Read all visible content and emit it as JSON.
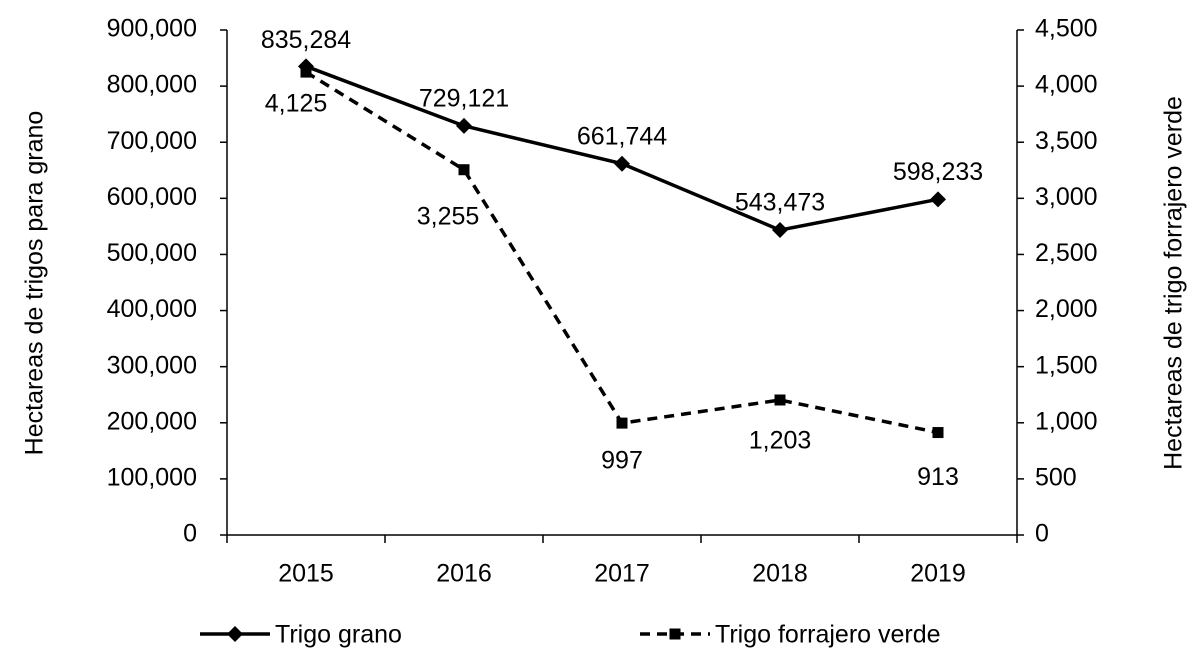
{
  "chart_data": {
    "type": "line",
    "categories": [
      "2015",
      "2016",
      "2017",
      "2018",
      "2019"
    ],
    "ylabel": "Hectareas de trigos para grano",
    "y2label": "Hectareas de trigo forrajero verde",
    "ylim": [
      0,
      900000
    ],
    "yticks": [
      0,
      {
        "value": 100000,
        "label": "100,000"
      },
      {
        "value": 200000,
        "label": "200,000"
      },
      {
        "value": 300000,
        "label": "300,000"
      },
      {
        "value": 400000,
        "label": "400,000"
      },
      {
        "value": 500000,
        "label": "500,000"
      },
      {
        "value": 600000,
        "label": "600,000"
      },
      {
        "value": 700000,
        "label": "700,000"
      },
      {
        "value": 800000,
        "label": "800,000"
      },
      {
        "value": 900000,
        "label": "900,000"
      }
    ],
    "y2lim": [
      0,
      4500
    ],
    "y2ticks": [
      0,
      500,
      {
        "value": 1000,
        "label": "1,000"
      },
      {
        "value": 1500,
        "label": "1,500"
      },
      {
        "value": 2000,
        "label": "2,000"
      },
      {
        "value": 2500,
        "label": "2,500"
      },
      {
        "value": 3000,
        "label": "3,000"
      },
      {
        "value": 3500,
        "label": "3,500"
      },
      {
        "value": 4000,
        "label": "4,000"
      },
      {
        "value": 4500,
        "label": "4,500"
      }
    ],
    "legend": "bottom",
    "series": [
      {
        "name": "Trigo grano",
        "color": "#000000",
        "marker": "diamond",
        "line_style": "solid",
        "values": [
          835284,
          729121,
          661744,
          543473,
          598233
        ],
        "value_labels": [
          "835,284",
          "729,121",
          "661,744",
          "543,473",
          "598,233"
        ]
      },
      {
        "name": "Trigo forrajero verde",
        "color": "#000000",
        "marker": "square",
        "line_style": "dashed",
        "axis": "y2",
        "values": [
          4125,
          3255,
          997,
          1203,
          913
        ],
        "value_labels": [
          "4,125",
          "3,255",
          "997",
          "1,203",
          "913"
        ]
      }
    ]
  }
}
